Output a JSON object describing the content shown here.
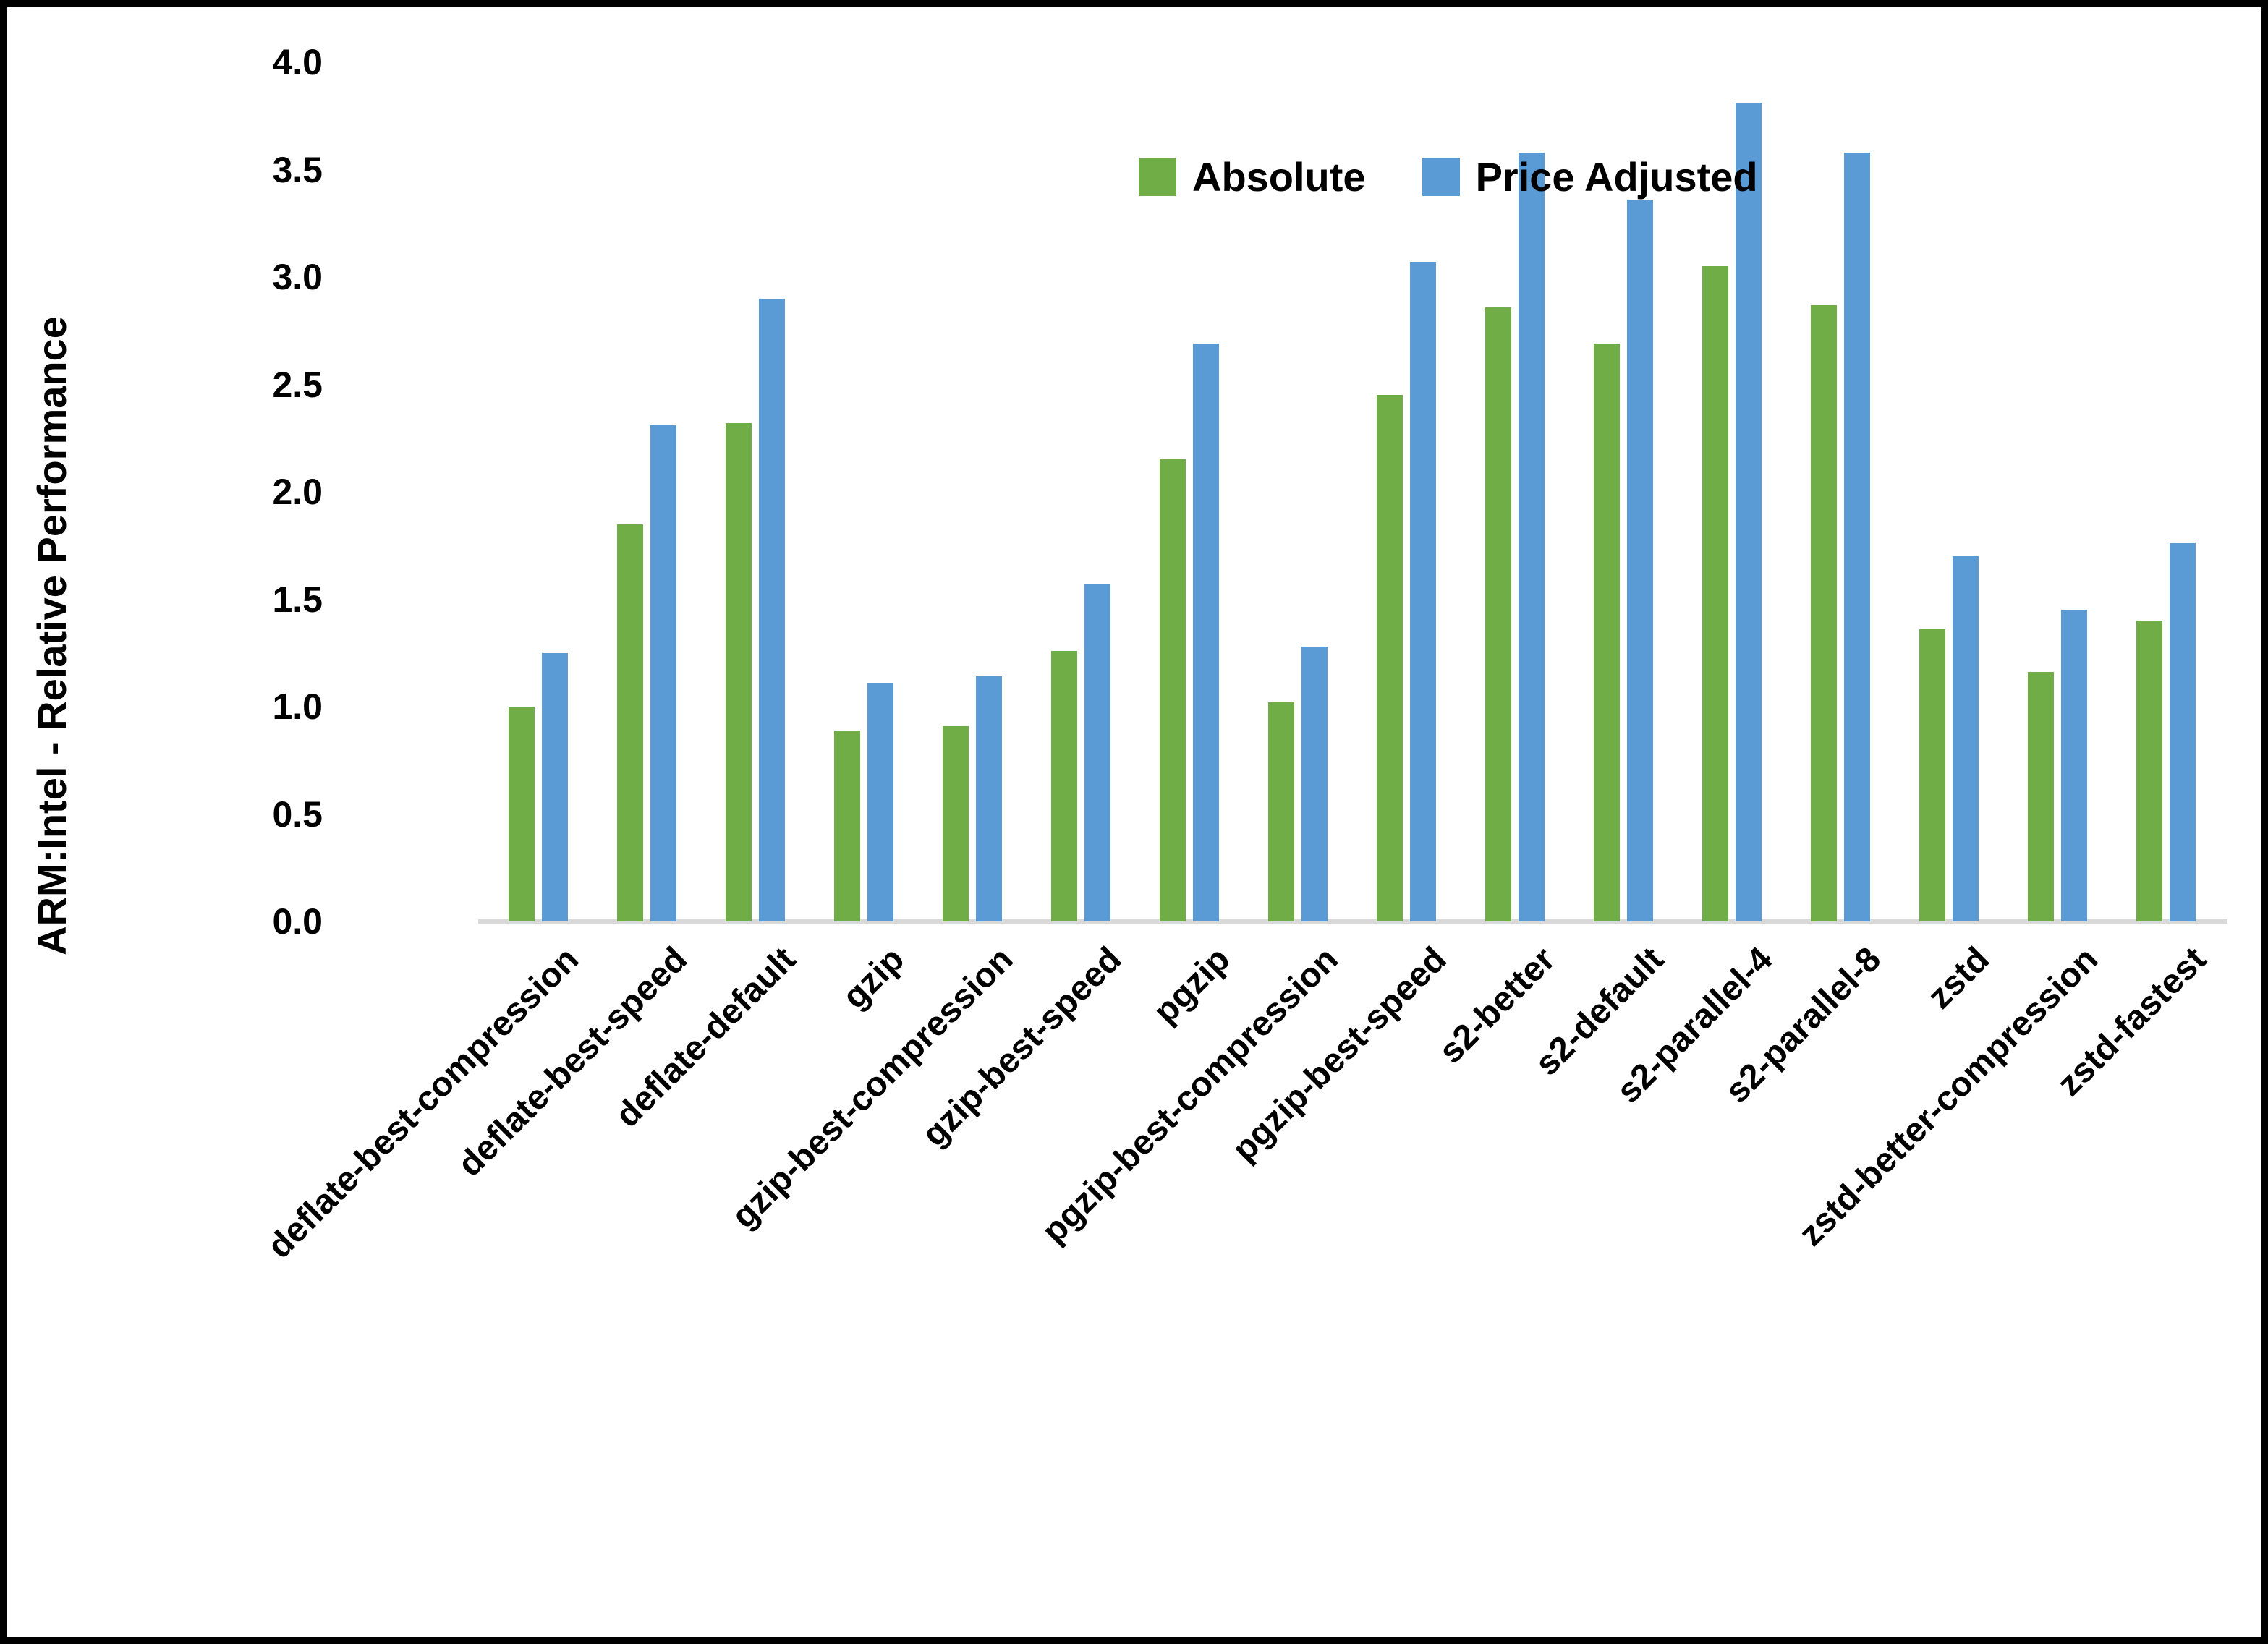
{
  "figure": {
    "ylabel": "ARM:Intel - Relative Performance",
    "border_color": "#000000",
    "background_color": "#ffffff",
    "baseline_color": "#d9d9d9"
  },
  "legend": {
    "items": [
      {
        "label": "Absolute",
        "color": "#70AD47"
      },
      {
        "label": "Price Adjusted",
        "color": "#5B9BD5"
      }
    ]
  },
  "chart_data": {
    "type": "bar",
    "title": "",
    "xlabel": "",
    "ylabel": "ARM:Intel - Relative Performance",
    "ylim": [
      0,
      4
    ],
    "ytick_step": 0.5,
    "yticks": [
      "4.0",
      "3.5",
      "3.0",
      "2.5",
      "2.0",
      "1.5",
      "1.0",
      "0.5",
      "0.0"
    ],
    "grid": false,
    "legend_position": "top-center",
    "bar_orientation": "vertical",
    "categories": [
      "deflate-best-compression",
      "deflate-best-speed",
      "deflate-default",
      "gzip",
      "gzip-best-compression",
      "gzip-best-speed",
      "pgzip",
      "pgzip-best-compression",
      "pgzip-best-speed",
      "s2-better",
      "s2-default",
      "s2-parallel-4",
      "s2-parallel-8",
      "zstd",
      "zstd-better-compression",
      "zstd-fastest"
    ],
    "series": [
      {
        "name": "Absolute",
        "color": "#70AD47",
        "values": [
          1.0,
          1.85,
          2.32,
          0.89,
          0.91,
          1.26,
          2.15,
          1.02,
          2.45,
          2.86,
          2.69,
          3.05,
          2.87,
          1.36,
          1.16,
          1.4
        ]
      },
      {
        "name": "Price Adjusted",
        "color": "#5B9BD5",
        "values": [
          1.25,
          2.31,
          2.9,
          1.11,
          1.14,
          1.57,
          2.69,
          1.28,
          3.07,
          3.58,
          3.36,
          3.81,
          3.58,
          1.7,
          1.45,
          1.76
        ]
      }
    ]
  }
}
